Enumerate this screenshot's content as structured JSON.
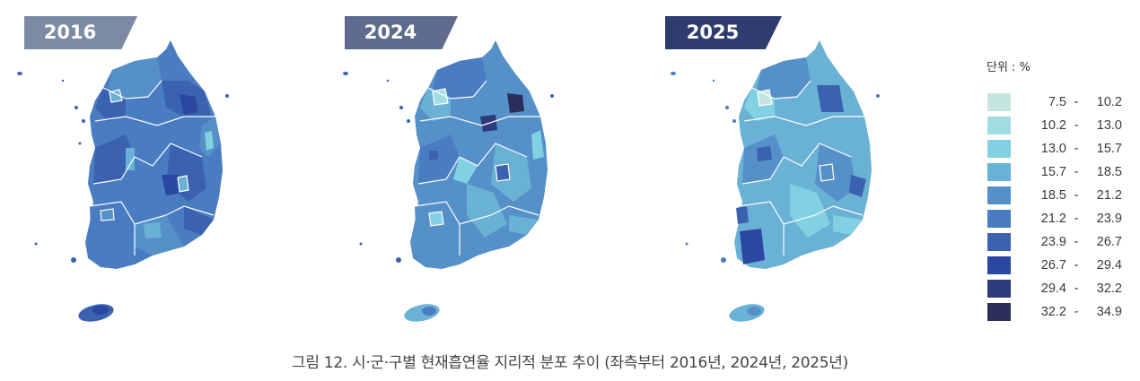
{
  "panels": [
    {
      "year": "2016",
      "badge_color": "#7d8aa6"
    },
    {
      "year": "2024",
      "badge_color": "#5f6b8c"
    },
    {
      "year": "2025",
      "badge_color": "#2f3d6e"
    }
  ],
  "legend": {
    "unit_label": "단위 : %",
    "classes": [
      {
        "lo": "7.5",
        "hi": "10.2",
        "color": "#c4e6e0"
      },
      {
        "lo": "10.2",
        "hi": "13.0",
        "color": "#a2dce3"
      },
      {
        "lo": "13.0",
        "hi": "15.7",
        "color": "#82d1e3"
      },
      {
        "lo": "15.7",
        "hi": "18.5",
        "color": "#6ab1d6"
      },
      {
        "lo": "18.5",
        "hi": "21.2",
        "color": "#5690c8"
      },
      {
        "lo": "21.2",
        "hi": "23.9",
        "color": "#4a7cc2"
      },
      {
        "lo": "23.9",
        "hi": "26.7",
        "color": "#3b62b0"
      },
      {
        "lo": "26.7",
        "hi": "29.4",
        "color": "#2a48a0"
      },
      {
        "lo": "29.4",
        "hi": "32.2",
        "color": "#2e3b7a"
      },
      {
        "lo": "32.2",
        "hi": "34.9",
        "color": "#2a2f5a"
      }
    ],
    "separator": "-"
  },
  "caption": "그림 12.  시·군·구별 현재흡연율 지리적 분포 추이 (좌측부터 2016년, 2024년, 2025년)",
  "chart_data": {
    "type": "heatmap",
    "subtype": "choropleth",
    "title": "그림 12. 시·군·구별 현재흡연율 지리적 분포 추이 (좌측부터 2016년, 2024년, 2025년)",
    "unit": "%",
    "panels": [
      "2016",
      "2024",
      "2025"
    ],
    "legend_bins": [
      [
        7.5,
        10.2
      ],
      [
        10.2,
        13.0
      ],
      [
        13.0,
        15.7
      ],
      [
        15.7,
        18.5
      ],
      [
        18.5,
        21.2
      ],
      [
        21.2,
        23.9
      ],
      [
        23.9,
        26.7
      ],
      [
        26.7,
        29.4
      ],
      [
        29.4,
        32.2
      ],
      [
        32.2,
        34.9
      ]
    ],
    "notes": "2016 map predominantly 21.2–26.7% (darker blues); 2024 and 2025 predominantly 15.7–23.9% (lighter blues), with Seoul metro area lightest; 2024 shows one darkest (32.2–34.9) district in northeast Gangwon; 2025 shows dark (26.7–29.4) cluster in southwest Jeonnam."
  }
}
